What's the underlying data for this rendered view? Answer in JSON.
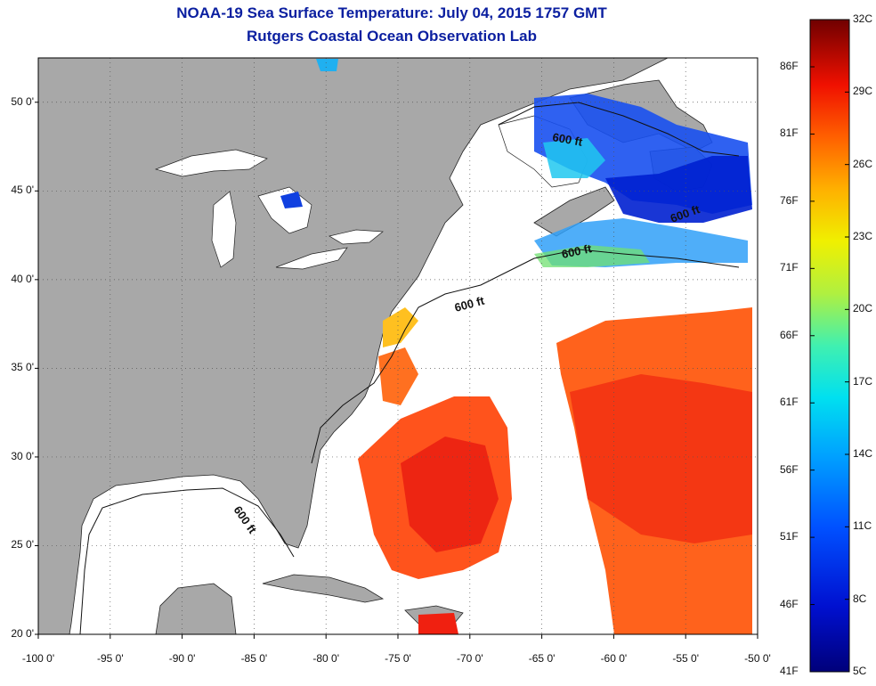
{
  "title": "NOAA-19 Sea Surface Temperature:  July 04, 2015 1757 GMT",
  "subtitle": "Rutgers Coastal Ocean Observation Lab",
  "axes": {
    "lat_ticks": [
      {
        "value": 50,
        "label": "50 0'"
      },
      {
        "value": 45,
        "label": "45 0'"
      },
      {
        "value": 40,
        "label": "40 0'"
      },
      {
        "value": 35,
        "label": "35 0'"
      },
      {
        "value": 30,
        "label": "30 0'"
      },
      {
        "value": 25,
        "label": "25 0'"
      },
      {
        "value": 20,
        "label": "20 0'"
      }
    ],
    "lon_ticks": [
      {
        "value": -100,
        "label": "-100 0'"
      },
      {
        "value": -95,
        "label": "-95 0'"
      },
      {
        "value": -90,
        "label": "-90 0'"
      },
      {
        "value": -85,
        "label": "-85 0'"
      },
      {
        "value": -80,
        "label": "-80 0'"
      },
      {
        "value": -75,
        "label": "-75 0'"
      },
      {
        "value": -70,
        "label": "-70 0'"
      },
      {
        "value": -65,
        "label": "-65 0'"
      },
      {
        "value": -60,
        "label": "-60 0'"
      },
      {
        "value": -55,
        "label": "-55 0'"
      },
      {
        "value": -50,
        "label": "-50 0'"
      }
    ],
    "lon_range": [
      -100,
      -50
    ],
    "lat_range": [
      20,
      52.5
    ]
  },
  "contour_label": "600 ft",
  "colorbar": {
    "celsius": [
      "32C",
      "29C",
      "26C",
      "23C",
      "20C",
      "17C",
      "14C",
      "11C",
      "8C",
      "5C"
    ],
    "fahrenheit": [
      "86F",
      "81F",
      "76F",
      "71F",
      "66F",
      "61F",
      "56F",
      "51F",
      "46F",
      "41F"
    ],
    "colors": [
      "#7a0000",
      "#c40000",
      "#ff2000",
      "#ff6a00",
      "#ffb000",
      "#ffe800",
      "#b8f040",
      "#40e0a0",
      "#00c8f0",
      "#0080ff",
      "#0030e0",
      "#000090"
    ]
  },
  "colors": {
    "land": "#a8a8a8",
    "no_data": "#ffffff",
    "title": "#0b1fa0"
  }
}
